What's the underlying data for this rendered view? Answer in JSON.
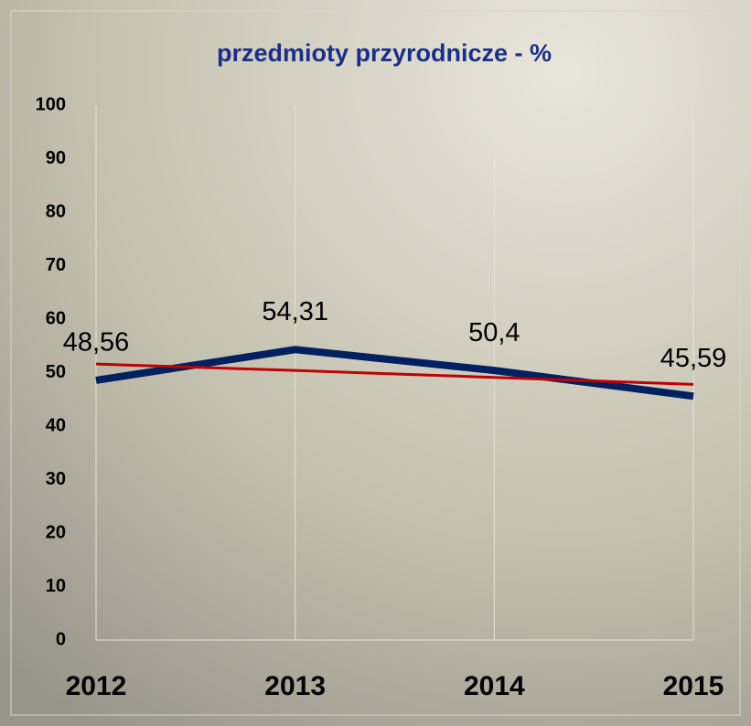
{
  "chart_data": {
    "type": "line",
    "title": "przedmioty przyrodnicze - %",
    "categories": [
      "2012",
      "2013",
      "2014",
      "2015"
    ],
    "series": [
      {
        "color": "#002060",
        "values": [
          48.56,
          54.31,
          50.4,
          45.59
        ],
        "value_labels": [
          "48,56",
          "54,31",
          "50,4",
          "45,59"
        ]
      },
      {
        "color": "#c00000",
        "values": [
          51.6,
          50.4,
          49.1,
          47.8
        ]
      }
    ],
    "ylim": [
      0,
      100
    ],
    "yticks": [
      0,
      10,
      20,
      30,
      40,
      50,
      60,
      70,
      80,
      90,
      100
    ],
    "grid": true
  }
}
